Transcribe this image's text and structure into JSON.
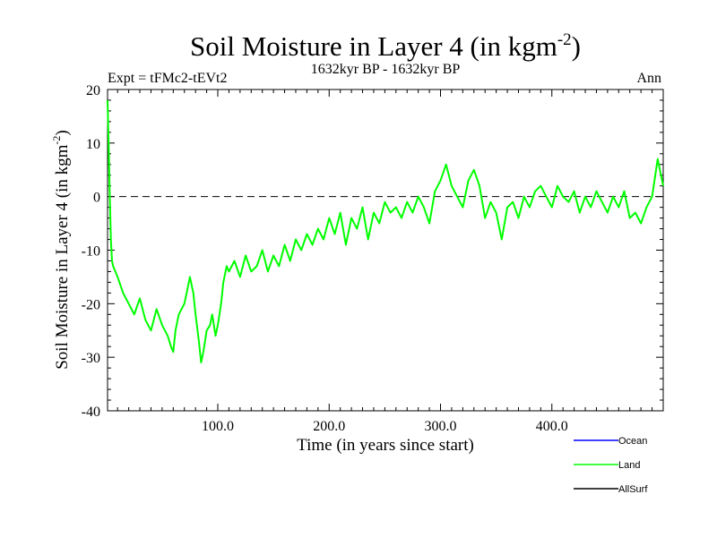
{
  "chart_data": {
    "type": "line",
    "title": "Soil Moisture in Layer 4 (in kgm",
    "title_sup": "-2",
    "title_close": ")",
    "subtitle_left": "Expt = tFMc2-tEVt2",
    "subtitle_center": "1632kyr BP - 1632kyr BP",
    "subtitle_right": "Ann",
    "xlabel": "Time (in years since start)",
    "ylabel": "Soil Moisture in Layer 4 (in kgm",
    "ylabel_sup": "-2",
    "ylabel_close": ")",
    "xlim": [
      1,
      500
    ],
    "ylim": [
      -40,
      20
    ],
    "xticks": [
      100,
      200,
      300,
      400
    ],
    "xtick_labels": [
      "100.0",
      "200.0",
      "300.0",
      "400.0"
    ],
    "yticks": [
      20,
      10,
      0,
      -10,
      -20,
      -30,
      -40
    ],
    "ytick_labels": [
      "20",
      "10",
      "0",
      "-10",
      "-20",
      "-30",
      "-40"
    ],
    "reference_line": 0,
    "series": [
      {
        "name": "Land",
        "color": "#00ff00",
        "x": [
          1,
          2,
          3,
          4,
          5,
          6,
          8,
          10,
          15,
          20,
          25,
          30,
          35,
          40,
          45,
          50,
          55,
          58,
          60,
          62,
          65,
          70,
          73,
          75,
          78,
          80,
          83,
          85,
          87,
          90,
          93,
          95,
          98,
          100,
          103,
          105,
          108,
          110,
          115,
          120,
          125,
          130,
          135,
          140,
          145,
          150,
          155,
          160,
          165,
          170,
          175,
          180,
          185,
          190,
          195,
          200,
          205,
          210,
          215,
          220,
          225,
          230,
          235,
          240,
          245,
          250,
          255,
          260,
          265,
          270,
          275,
          280,
          285,
          290,
          295,
          300,
          305,
          310,
          315,
          320,
          325,
          330,
          335,
          340,
          345,
          350,
          355,
          360,
          365,
          370,
          375,
          380,
          385,
          390,
          395,
          400,
          405,
          410,
          415,
          420,
          425,
          430,
          435,
          440,
          445,
          450,
          455,
          460,
          465,
          470,
          475,
          480,
          485,
          490,
          495,
          500
        ],
        "values": [
          18,
          10,
          0,
          -8,
          -12,
          -13,
          -14,
          -15,
          -18,
          -20,
          -22,
          -19,
          -23,
          -25,
          -21,
          -24,
          -26,
          -28,
          -29,
          -25,
          -22,
          -20,
          -17,
          -15,
          -18,
          -22,
          -27,
          -31,
          -29,
          -25,
          -24,
          -22,
          -26,
          -24,
          -20,
          -16,
          -13,
          -14,
          -12,
          -15,
          -11,
          -14,
          -13,
          -10,
          -14,
          -11,
          -13,
          -9,
          -12,
          -8,
          -10,
          -7,
          -9,
          -6,
          -8,
          -4,
          -7,
          -3,
          -9,
          -4,
          -6,
          -2,
          -8,
          -3,
          -5,
          -1,
          -3,
          -2,
          -4,
          -1,
          -3,
          0,
          -2,
          -5,
          1,
          3,
          6,
          2,
          0,
          -2,
          3,
          5,
          2,
          -4,
          -1,
          -3,
          -8,
          -2,
          -1,
          -4,
          0,
          -2,
          1,
          2,
          0,
          -2,
          2,
          0,
          -1,
          1,
          -3,
          0,
          -2,
          1,
          -1,
          -3,
          0,
          -2,
          1,
          -4,
          -3,
          -5,
          -2,
          0,
          7,
          2
        ]
      }
    ],
    "legend": [
      {
        "name": "Ocean",
        "color": "#0000ff"
      },
      {
        "name": "Land",
        "color": "#00ff00"
      },
      {
        "name": "AllSurf",
        "color": "#000000"
      }
    ]
  }
}
